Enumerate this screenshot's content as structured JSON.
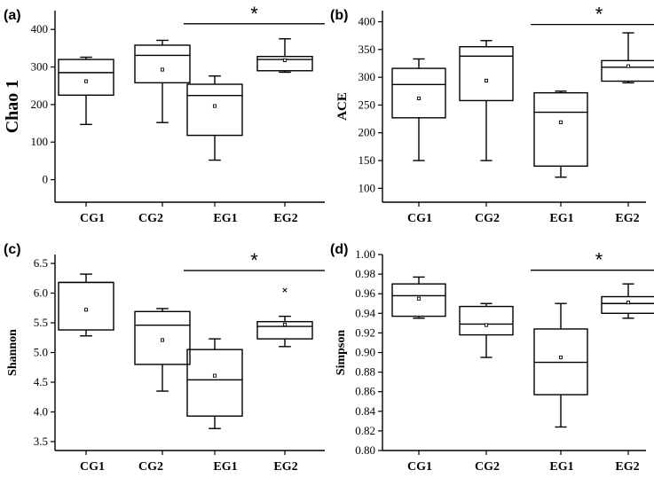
{
  "chart_data": [
    {
      "type": "box",
      "panel_label": "(a)",
      "ylabel": "Chao 1",
      "ylim": [
        -60,
        450
      ],
      "yticks": [
        0,
        100,
        200,
        300,
        400
      ],
      "categories": [
        "CG1",
        "CG2",
        "EG1",
        "EG2"
      ],
      "boxes": [
        {
          "min": 147,
          "q1": 225,
          "median": 285,
          "q3": 320,
          "max": 326,
          "mean": 262
        },
        {
          "min": 152,
          "q1": 258,
          "median": 331,
          "q3": 358,
          "max": 371,
          "mean": 293
        },
        {
          "min": 52,
          "q1": 118,
          "median": 224,
          "q3": 254,
          "max": 276,
          "mean": 196
        },
        {
          "min": 286,
          "q1": 290,
          "median": 320,
          "q3": 328,
          "max": 375,
          "mean": 318
        }
      ],
      "outliers": [],
      "significance": {
        "from": "EG1",
        "to": "EG2",
        "label": "*",
        "y": 415
      }
    },
    {
      "type": "box",
      "panel_label": "(b)",
      "ylabel": "ACE",
      "ylim": [
        75,
        420
      ],
      "yticks": [
        100,
        150,
        200,
        250,
        300,
        350,
        400
      ],
      "categories": [
        "CG1",
        "CG2",
        "EG1",
        "EG2"
      ],
      "boxes": [
        {
          "min": 150,
          "q1": 227,
          "median": 287,
          "q3": 316,
          "max": 333,
          "mean": 262
        },
        {
          "min": 150,
          "q1": 258,
          "median": 338,
          "q3": 355,
          "max": 366,
          "mean": 294
        },
        {
          "min": 120,
          "q1": 140,
          "median": 237,
          "q3": 272,
          "max": 275,
          "mean": 219
        },
        {
          "min": 290,
          "q1": 293,
          "median": 318,
          "q3": 330,
          "max": 380,
          "mean": 320
        }
      ],
      "outliers": [],
      "significance": {
        "from": "EG1",
        "to": "EG2",
        "label": "*",
        "y": 395
      }
    },
    {
      "type": "box",
      "panel_label": "(c)",
      "ylabel": "Shannon",
      "ylim": [
        3.35,
        6.65
      ],
      "yticks": [
        3.5,
        4.0,
        4.5,
        5.0,
        5.5,
        6.0,
        6.5
      ],
      "categories": [
        "CG1",
        "CG2",
        "EG1",
        "EG2"
      ],
      "boxes": [
        {
          "min": 5.28,
          "q1": 5.38,
          "median": 6.18,
          "q3": 6.18,
          "max": 6.32,
          "mean": 5.72
        },
        {
          "min": 4.35,
          "q1": 4.8,
          "median": 5.46,
          "q3": 5.69,
          "max": 5.74,
          "mean": 5.21
        },
        {
          "min": 3.72,
          "q1": 3.93,
          "median": 4.54,
          "q3": 5.05,
          "max": 5.23,
          "mean": 4.61
        },
        {
          "min": 5.1,
          "q1": 5.23,
          "median": 5.44,
          "q3": 5.52,
          "max": 5.61,
          "mean": 5.47
        }
      ],
      "outliers": [
        {
          "category": "EG2",
          "value": 6.05
        }
      ],
      "significance": {
        "from": "EG1",
        "to": "EG2",
        "label": "*",
        "y": 6.38
      }
    },
    {
      "type": "box",
      "panel_label": "(d)",
      "ylabel": "Simpson",
      "ylim": [
        0.8,
        1.0
      ],
      "yticks": [
        0.8,
        0.82,
        0.84,
        0.86,
        0.88,
        0.9,
        0.92,
        0.94,
        0.96,
        0.98,
        1.0
      ],
      "categories": [
        "CG1",
        "CG2",
        "EG1",
        "EG2"
      ],
      "boxes": [
        {
          "min": 0.935,
          "q1": 0.937,
          "median": 0.958,
          "q3": 0.97,
          "max": 0.977,
          "mean": 0.955
        },
        {
          "min": 0.895,
          "q1": 0.918,
          "median": 0.929,
          "q3": 0.947,
          "max": 0.95,
          "mean": 0.928
        },
        {
          "min": 0.824,
          "q1": 0.857,
          "median": 0.89,
          "q3": 0.924,
          "max": 0.95,
          "mean": 0.895
        },
        {
          "min": 0.935,
          "q1": 0.94,
          "median": 0.95,
          "q3": 0.957,
          "max": 0.97,
          "mean": 0.951
        }
      ],
      "outliers": [],
      "significance": {
        "from": "EG1",
        "to": "EG2",
        "label": "*",
        "y": 0.984
      }
    }
  ]
}
